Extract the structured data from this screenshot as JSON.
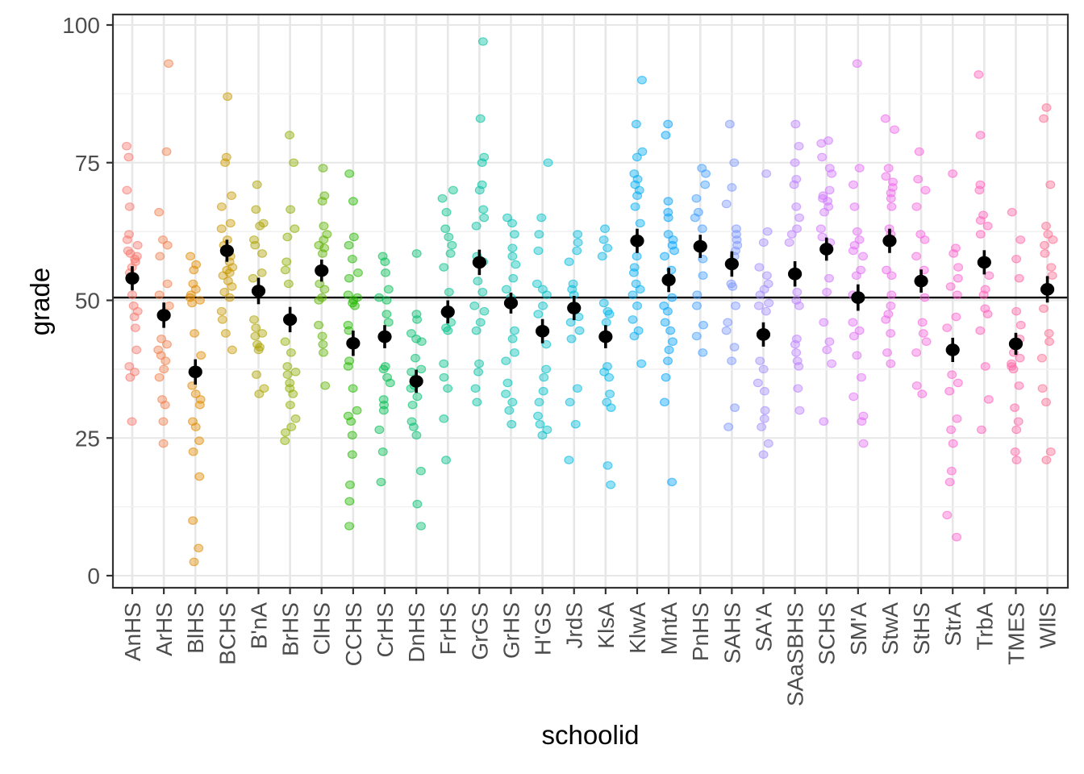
{
  "chart_data": {
    "type": "scatter",
    "variant": "jittered points by category with mean and 95% CI",
    "title": "",
    "xlabel": "schoolid",
    "ylabel": "grade",
    "ylim": [
      0,
      100
    ],
    "yticks": [
      0,
      25,
      50,
      75,
      100
    ],
    "yticks_minor": [
      12.5,
      37.5,
      62.5,
      87.5
    ],
    "reference_line_y": 50.5,
    "grid": "on",
    "legend": "none",
    "categories": [
      "AnHS",
      "ArHS",
      "BlHS",
      "BCHS",
      "B'nA",
      "BrHS",
      "ClHS",
      "CCHS",
      "CrHS",
      "DnHS",
      "FrHS",
      "GrGS",
      "GrHS",
      "H'GS",
      "JrdS",
      "KlsA",
      "KlwA",
      "MntA",
      "PnHS",
      "SAHS",
      "SA'A",
      "SAaSBHS",
      "SCHS",
      "SM'A",
      "StwA",
      "StHS",
      "StrA",
      "TrbA",
      "TMES",
      "WllS"
    ],
    "series": [
      {
        "name": "AnHS",
        "color": "#F8766D",
        "mean": 54.0,
        "ci_half": 2.2,
        "points": [
          78,
          76,
          70,
          67,
          62,
          61,
          60,
          59,
          58.5,
          58,
          57.5,
          57,
          56,
          55,
          51,
          49,
          48,
          47,
          45,
          41,
          38,
          37,
          36,
          28
        ]
      },
      {
        "name": "ArHS",
        "color": "#F07E4D",
        "mean": 47.3,
        "ci_half": 2.3,
        "points": [
          93,
          77,
          66,
          61,
          60,
          58,
          53,
          51,
          49,
          43,
          42,
          41,
          40,
          39,
          37.5,
          36,
          32,
          31,
          28,
          24
        ]
      },
      {
        "name": "BlHS",
        "color": "#E08B00",
        "mean": 37.0,
        "ci_half": 2.3,
        "points": [
          58,
          56.5,
          55.5,
          53,
          52,
          51,
          50.5,
          50,
          49.5,
          44,
          40,
          34.5,
          33,
          32,
          31,
          28,
          27,
          24.5,
          22.5,
          18,
          10,
          5,
          2.5
        ]
      },
      {
        "name": "BCHS",
        "color": "#C99800",
        "mean": 59.0,
        "ci_half": 2.0,
        "points": [
          87,
          76,
          75,
          69,
          67,
          64,
          63,
          61,
          60,
          59,
          58,
          57,
          56,
          55.5,
          55,
          54.5,
          53.5,
          52.5,
          51.5,
          50.5,
          48,
          46.5,
          44,
          41
        ]
      },
      {
        "name": "B'nA",
        "color": "#ACA300",
        "mean": 51.7,
        "ci_half": 2.4,
        "points": [
          71,
          66.5,
          64,
          63.5,
          61,
          60,
          58.5,
          55,
          54,
          46.5,
          45,
          44,
          43.5,
          42,
          41.5,
          41,
          36.5,
          34,
          33
        ]
      },
      {
        "name": "BrHS",
        "color": "#8CAD00",
        "mean": 46.5,
        "ci_half": 2.3,
        "points": [
          80,
          75,
          66.5,
          63,
          61.5,
          57,
          55.5,
          53,
          42.5,
          40.5,
          38,
          37,
          36.5,
          35,
          34,
          33,
          31,
          28.5,
          27,
          26,
          24.5
        ]
      },
      {
        "name": "ClHS",
        "color": "#5EB300",
        "mean": 55.4,
        "ci_half": 2.0,
        "points": [
          74,
          69,
          68,
          63.5,
          62,
          61,
          60,
          59.5,
          58.5,
          53,
          52,
          50.5,
          50,
          45.5,
          43.5,
          42,
          40.5,
          34.5
        ]
      },
      {
        "name": "CCHS",
        "color": "#24B700",
        "mean": 42.2,
        "ci_half": 2.3,
        "points": [
          73,
          68,
          61.5,
          60,
          57.5,
          55,
          54,
          51,
          50.5,
          50,
          49.5,
          49,
          45.5,
          44.5,
          39,
          38,
          34,
          30,
          29,
          28,
          25.5,
          22,
          16.5,
          13.5,
          9
        ]
      },
      {
        "name": "CrHS",
        "color": "#00BC51",
        "mean": 43.4,
        "ci_half": 2.1,
        "points": [
          58,
          57,
          55,
          52,
          50.5,
          50,
          47.5,
          46,
          38,
          37.5,
          36,
          35,
          32,
          31,
          30,
          26.5,
          22.5,
          17
        ]
      },
      {
        "name": "DnHS",
        "color": "#00BE70",
        "mean": 35.3,
        "ci_half": 2.1,
        "points": [
          58.5,
          47.5,
          46.5,
          44,
          43,
          42.5,
          39.5,
          37.5,
          37,
          34.5,
          34,
          32.5,
          31,
          28,
          27,
          25.5,
          19,
          13,
          9
        ]
      },
      {
        "name": "FrHS",
        "color": "#00C08B",
        "mean": 47.9,
        "ci_half": 2.1,
        "points": [
          70,
          68.5,
          66,
          63,
          61.5,
          60,
          58.5,
          56,
          51.5,
          46,
          45,
          44.5,
          38.5,
          36,
          34,
          28.5,
          21
        ]
      },
      {
        "name": "GrGS",
        "color": "#00C0A2",
        "mean": 56.9,
        "ci_half": 2.3,
        "points": [
          97,
          83,
          76,
          75,
          71,
          70,
          66.5,
          65,
          63.5,
          58,
          57,
          53.5,
          51.5,
          49,
          48,
          46,
          44.5,
          38.5,
          37,
          34,
          31.5
        ]
      },
      {
        "name": "GrHS",
        "color": "#00C0B6",
        "mean": 49.5,
        "ci_half": 1.9,
        "points": [
          65,
          64,
          62,
          59.5,
          58,
          56.5,
          54,
          52,
          50.5,
          44.5,
          43,
          40.5,
          39,
          35,
          33,
          31.5,
          30,
          27.5
        ]
      },
      {
        "name": "H'GS",
        "color": "#00BFC8",
        "mean": 44.4,
        "ci_half": 2.2,
        "points": [
          75,
          65,
          62,
          59,
          53,
          52,
          51,
          49,
          47.5,
          42,
          37.5,
          36,
          33.5,
          31.5,
          29,
          27.5,
          26.5,
          25.5
        ]
      },
      {
        "name": "JrdS",
        "color": "#00BBD8",
        "mean": 48.6,
        "ci_half": 2.2,
        "points": [
          62,
          60.5,
          59,
          57,
          53,
          52,
          51,
          47,
          46,
          44.5,
          43,
          34,
          31.5,
          27.5,
          21
        ]
      },
      {
        "name": "KlsA",
        "color": "#00B5E8",
        "mean": 43.4,
        "ci_half": 2.1,
        "points": [
          63,
          61,
          59.5,
          58,
          49.5,
          48,
          47.5,
          46,
          38,
          37,
          36,
          33,
          31.5,
          30.5,
          20,
          16.5
        ]
      },
      {
        "name": "KlwA",
        "color": "#00ADF4",
        "mean": 60.8,
        "ci_half": 2.2,
        "points": [
          90,
          82,
          77,
          76,
          73,
          72,
          71,
          70,
          69,
          67,
          64,
          58,
          56,
          55,
          53,
          52,
          51,
          49,
          46.5,
          44.5,
          43.5,
          38.5
        ]
      },
      {
        "name": "MntA",
        "color": "#00A3FD",
        "mean": 53.7,
        "ci_half": 2.2,
        "points": [
          82,
          80,
          68,
          66,
          65,
          62,
          61,
          60,
          59,
          58,
          55.5,
          50.5,
          49,
          48,
          46,
          44.5,
          42.5,
          41,
          39,
          36,
          31.5,
          17
        ]
      },
      {
        "name": "PnHS",
        "color": "#3F9EFF",
        "mean": 59.8,
        "ci_half": 2.1,
        "points": [
          74,
          73,
          71,
          68.5,
          66,
          65,
          63,
          57.5,
          54.5,
          51,
          49,
          45.5,
          43.5,
          40.5
        ]
      },
      {
        "name": "SAHS",
        "color": "#7C96FF",
        "mean": 56.6,
        "ci_half": 2.3,
        "points": [
          82,
          75,
          70.5,
          67.5,
          63,
          62,
          61,
          60,
          59,
          58,
          53,
          52.5,
          49,
          46,
          44.5,
          41.5,
          39,
          30.5,
          27
        ]
      },
      {
        "name": "SA'A",
        "color": "#A18CFF",
        "mean": 43.8,
        "ci_half": 2.2,
        "points": [
          73,
          62.5,
          60.5,
          56,
          54.5,
          53,
          52,
          51,
          49.5,
          49,
          48,
          39,
          37.5,
          35,
          33.5,
          30,
          28.5,
          27,
          24,
          22
        ]
      },
      {
        "name": "SAaSBHS",
        "color": "#BC81FF",
        "mean": 54.8,
        "ci_half": 2.3,
        "points": [
          82,
          78,
          75,
          72,
          71,
          67,
          65,
          63,
          62,
          60.5,
          51.5,
          50,
          49,
          43,
          42,
          40.5,
          39,
          38,
          34,
          30
        ]
      },
      {
        "name": "SCHS",
        "color": "#D277FF",
        "mean": 59.3,
        "ci_half": 2.1,
        "points": [
          79,
          78.5,
          76,
          74,
          73,
          70,
          69,
          68.5,
          68,
          67,
          66,
          63,
          61.5,
          60.5,
          54,
          51.5,
          46,
          42.5,
          41,
          38.5,
          28
        ]
      },
      {
        "name": "SM'A",
        "color": "#E36EF6",
        "mean": 50.5,
        "ci_half": 2.4,
        "points": [
          93,
          74,
          71,
          67,
          62.5,
          61,
          60,
          59,
          58,
          55.5,
          54.5,
          51,
          46,
          44.5,
          43.5,
          40,
          36,
          32.5,
          29,
          28,
          24
        ]
      },
      {
        "name": "StwA",
        "color": "#EF67EB",
        "mean": 60.8,
        "ci_half": 2.2,
        "points": [
          83,
          81,
          74,
          72.5,
          71.5,
          70.5,
          69.5,
          68.5,
          67,
          63,
          62,
          55.5,
          54.5,
          51,
          49,
          47.5,
          46.5,
          44,
          40.5,
          38.5
        ]
      },
      {
        "name": "StHS",
        "color": "#F863DE",
        "mean": 53.5,
        "ci_half": 2.1,
        "points": [
          77,
          72,
          70,
          67,
          62,
          61,
          58,
          55.5,
          50.5,
          46,
          44,
          42.5,
          40.5,
          34.5,
          33
        ]
      },
      {
        "name": "StrA",
        "color": "#FD61CE",
        "mean": 41.0,
        "ci_half": 2.2,
        "points": [
          73,
          59.5,
          58.5,
          56,
          54,
          52.5,
          51,
          47,
          45,
          36.5,
          35,
          33.5,
          28.5,
          26.5,
          24,
          19,
          17,
          11,
          7
        ]
      },
      {
        "name": "TrbA",
        "color": "#FF62BC",
        "mean": 56.9,
        "ci_half": 2.2,
        "points": [
          91,
          80,
          71,
          70,
          65.5,
          64.5,
          63.5,
          62,
          54.5,
          52,
          51,
          48.5,
          47.5,
          44.5,
          38,
          32,
          26.5
        ]
      },
      {
        "name": "TMES",
        "color": "#FF65A8",
        "mean": 42.1,
        "ci_half": 2.0,
        "points": [
          66,
          61,
          57.5,
          54,
          48,
          45.5,
          43,
          40.5,
          39.5,
          38.5,
          38,
          37.5,
          34.5,
          30.5,
          28,
          26.5,
          22.5,
          21
        ]
      },
      {
        "name": "WllS",
        "color": "#FD6C91",
        "mean": 52.0,
        "ci_half": 2.4,
        "points": [
          85,
          83,
          71,
          63.5,
          62,
          61,
          60,
          58.5,
          56,
          54.5,
          48.5,
          44,
          42.5,
          39.5,
          34,
          31.5,
          22.5,
          21
        ]
      }
    ],
    "colors": {
      "mean_point": "#000000",
      "reference_line": "#000000",
      "panel_border": "#333333",
      "grid_major": "#e7e7e7",
      "grid_minor": "#f1f1f1",
      "tick_label": "#4d4d4d",
      "axis_title": "#000000",
      "panel_background": "#ffffff"
    }
  }
}
